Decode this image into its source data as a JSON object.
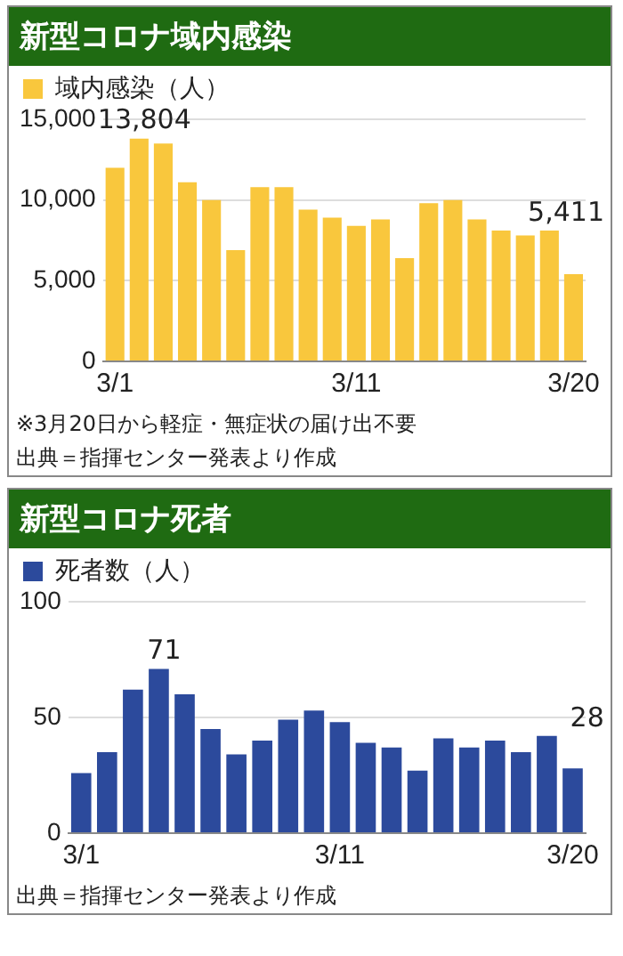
{
  "chart_data": [
    {
      "type": "bar",
      "title": "新型コロナ域内感染",
      "categories": [
        "3/1",
        null,
        null,
        null,
        null,
        null,
        null,
        null,
        null,
        null,
        "3/11",
        null,
        null,
        null,
        null,
        null,
        null,
        null,
        null,
        "3/20"
      ],
      "series": [
        {
          "name": "域内感染（人）",
          "color": "#f9c73d",
          "values": [
            12000,
            13804,
            13500,
            11100,
            10000,
            6900,
            10800,
            10800,
            9400,
            8900,
            8400,
            8800,
            6400,
            9800,
            10000,
            8800,
            8100,
            7800,
            8100,
            5411
          ],
          "value_labels": [
            null,
            "13,804",
            null,
            null,
            null,
            null,
            null,
            null,
            null,
            null,
            null,
            null,
            null,
            null,
            null,
            null,
            null,
            null,
            null,
            "5,411"
          ]
        }
      ],
      "ylim": [
        0,
        15000
      ],
      "yticks": [
        0,
        {
          "value": 5000,
          "label": "5,000"
        },
        {
          "value": 10000,
          "label": "10,000"
        },
        {
          "value": 15000,
          "label": "15,000"
        }
      ],
      "grid": "y",
      "legend": "top left",
      "annotations": [
        "※3月20日から軽症・無症状の届け出不要",
        "出典＝指揮センター発表より作成"
      ]
    },
    {
      "type": "bar",
      "title": "新型コロナ死者",
      "categories": [
        "3/1",
        null,
        null,
        null,
        null,
        null,
        null,
        null,
        null,
        null,
        "3/11",
        null,
        null,
        null,
        null,
        null,
        null,
        null,
        null,
        "3/20"
      ],
      "series": [
        {
          "name": "死者数（人）",
          "color": "#2c4a9c",
          "values": [
            26,
            35,
            62,
            71,
            60,
            45,
            34,
            40,
            49,
            53,
            48,
            39,
            37,
            27,
            41,
            37,
            40,
            35,
            42,
            28
          ],
          "value_labels": [
            null,
            null,
            null,
            "71",
            null,
            null,
            null,
            null,
            null,
            null,
            null,
            null,
            null,
            null,
            null,
            null,
            null,
            null,
            null,
            "28"
          ]
        }
      ],
      "ylim": [
        0,
        100
      ],
      "yticks": [
        0,
        50,
        100
      ],
      "grid": "y",
      "legend": "top left",
      "annotations": [
        "出典＝指揮センター発表より作成"
      ]
    }
  ]
}
